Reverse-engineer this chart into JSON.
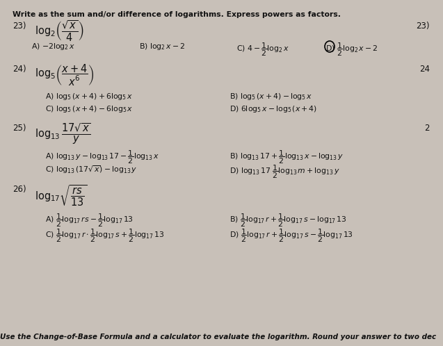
{
  "bg_color": "#c8c0b8",
  "text_color": "#111111",
  "title": "Write as the sum and/or difference of logarithms. Express powers as factors.",
  "footer": "Use the Change-of-Base Formula and a calculator to evaluate the logarithm. Round your answer to two dec",
  "q23_num_right": "23)",
  "q24_num_right": "24",
  "q25_num_right": "2",
  "fs_title": 7.8,
  "fs_label": 8.5,
  "fs_ans": 7.8,
  "fs_expr": 9.5,
  "fs_footer": 7.5
}
